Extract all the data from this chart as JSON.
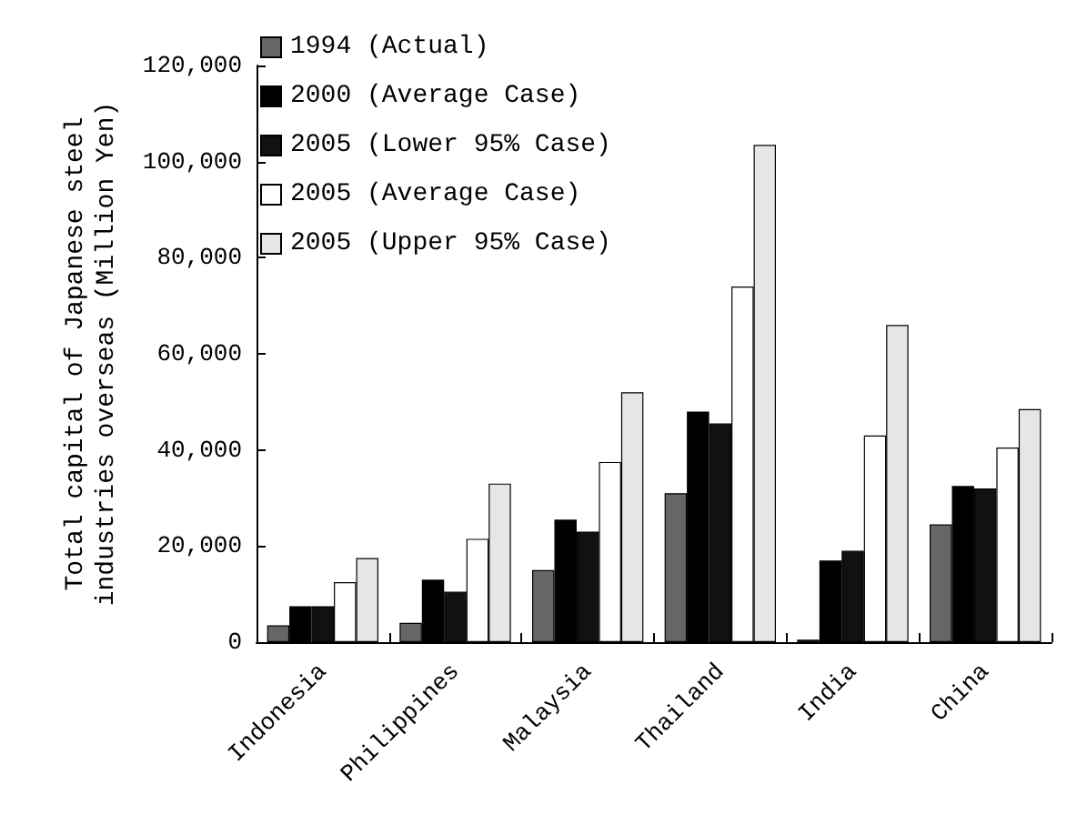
{
  "chart_data": {
    "type": "bar",
    "ylabel": "Total capital of Japanese steel\nindustries overseas (Million Yen)",
    "categories": [
      "Indonesia",
      "Philippines",
      "Malaysia",
      "Thailand",
      "India",
      "China"
    ],
    "series": [
      {
        "name": "1994 (Actual)",
        "color": "#666666",
        "values": [
          3500,
          4000,
          15000,
          31000,
          500,
          24500
        ]
      },
      {
        "name": "2000 (Average Case)",
        "color": "#000000",
        "values": [
          7500,
          13000,
          25500,
          48000,
          17000,
          32500
        ]
      },
      {
        "name": "2005 (Lower 95% Case)",
        "color": "#111111",
        "values": [
          7500,
          10500,
          23000,
          45500,
          19000,
          32000
        ]
      },
      {
        "name": "2005 (Average Case)",
        "color": "#ffffff",
        "values": [
          12500,
          21500,
          37500,
          74000,
          43000,
          40500
        ]
      },
      {
        "name": "2005 (Upper 95% Case)",
        "color": "#e6e6e6",
        "values": [
          17500,
          33000,
          52000,
          103500,
          66000,
          48500
        ]
      }
    ],
    "ylim": [
      0,
      120000
    ],
    "yticks": [
      0,
      {
        "value": 20000,
        "label": "20,000"
      },
      {
        "value": 40000,
        "label": "40,000"
      },
      {
        "value": 60000,
        "label": "60,000"
      },
      {
        "value": 80000,
        "label": "80,000"
      },
      {
        "value": 100000,
        "label": "100,000"
      },
      {
        "value": 120000,
        "label": "120,000"
      }
    ],
    "grid": false,
    "legend": "top left"
  }
}
